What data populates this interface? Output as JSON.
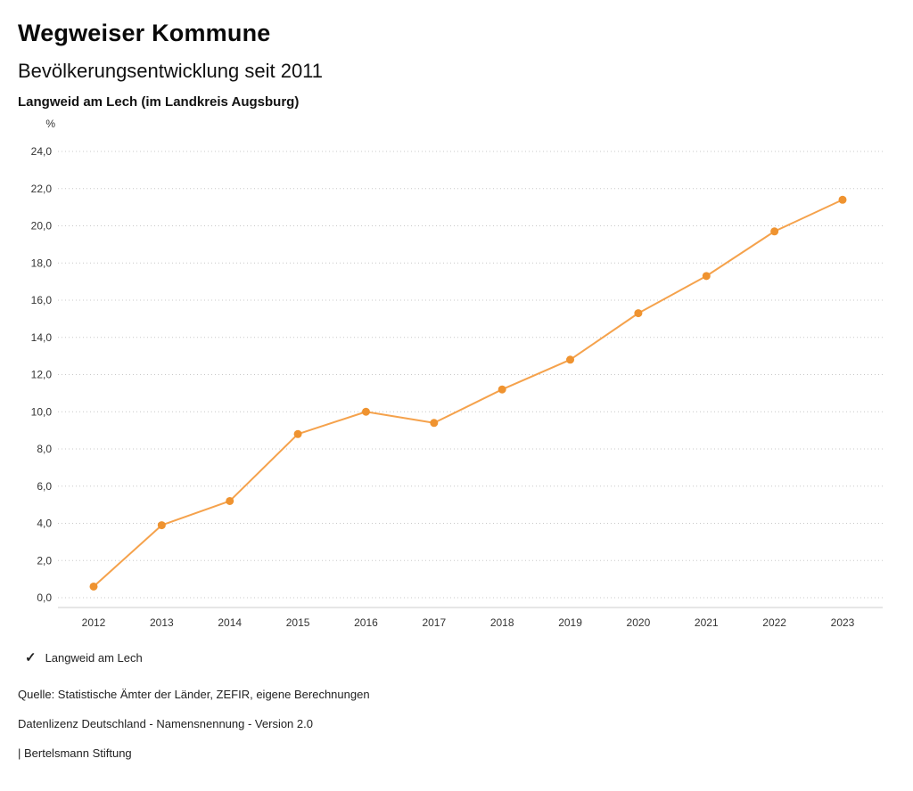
{
  "header": {
    "title": "Wegweiser Kommune",
    "subtitle": "Bevölkerungsentwicklung seit 2011",
    "location": "Langweid am Lech (im Landkreis Augsburg)"
  },
  "legend": {
    "check_icon": "✓",
    "label": "Langweid am Lech"
  },
  "footer": {
    "source": "Quelle: Statistische Ämter der Länder, ZEFIR, eigene Berechnungen",
    "license": "Datenlizenz Deutschland - Namensnennung - Version 2.0",
    "attribution": "| Bertelsmann Stiftung"
  },
  "chart_data": {
    "type": "line",
    "title": "Bevölkerungsentwicklung seit 2011",
    "subtitle": "Langweid am Lech (im Landkreis Augsburg)",
    "ylabel": "%",
    "x": [
      2012,
      2013,
      2014,
      2015,
      2016,
      2017,
      2018,
      2019,
      2020,
      2021,
      2022,
      2023
    ],
    "series": [
      {
        "name": "Langweid am Lech",
        "values": [
          0.6,
          3.9,
          5.2,
          8.8,
          10.0,
          9.4,
          11.2,
          12.8,
          15.3,
          17.3,
          19.7,
          21.4
        ]
      }
    ],
    "ylim": [
      0,
      24
    ],
    "ytick_step": 2,
    "grid": true,
    "legend_position": "bottom",
    "line_color": "#F5A24C",
    "marker_color": "#EF9330"
  }
}
